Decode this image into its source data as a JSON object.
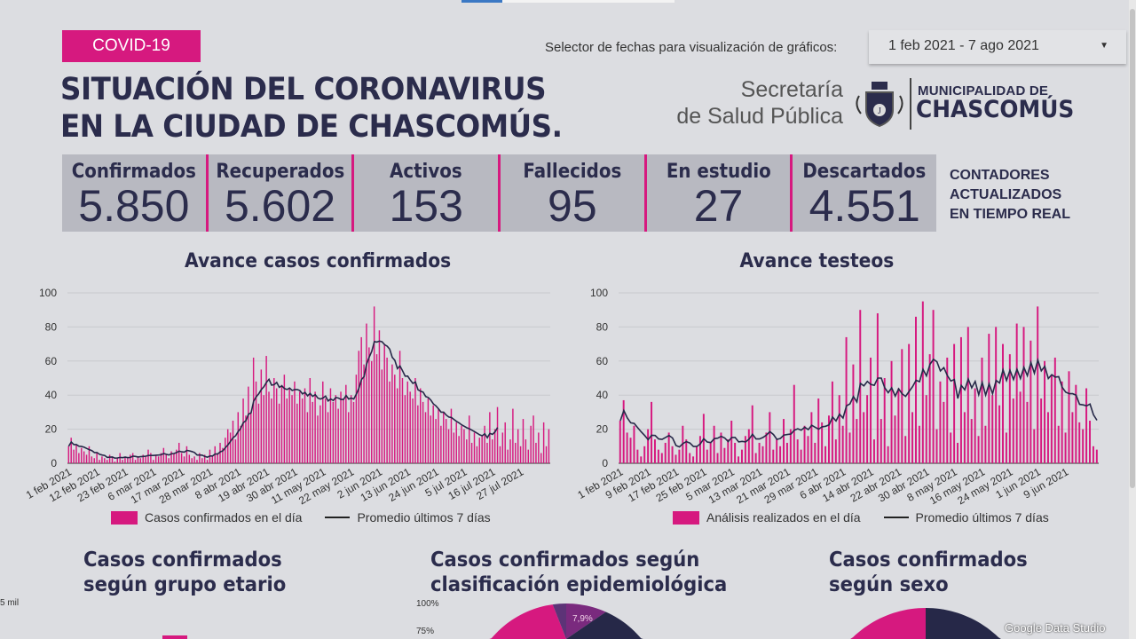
{
  "header": {
    "badge": "COVID-19",
    "title_line1": "SITUACIÓN DEL CORONAVIRUS",
    "title_line2": "EN LA CIUDAD DE CHASCOMÚS.",
    "date_selector_label": "Selector de fechas para visualización de gráficos:",
    "date_selector_value": "1 feb 2021 - 7 ago 2021",
    "secretaria_line1": "Secretaría",
    "secretaria_line2": "de Salud Pública",
    "muni_line1": "MUNICIPALIDAD DE",
    "muni_line2": "CHASCOMÚS"
  },
  "stats": [
    {
      "label": "Confirmados",
      "value": "5.850"
    },
    {
      "label": "Recuperados",
      "value": "5.602"
    },
    {
      "label": "Activos",
      "value": "153"
    },
    {
      "label": "Fallecidos",
      "value": "95"
    },
    {
      "label": "En estudio",
      "value": "27"
    },
    {
      "label": "Descartados",
      "value": "4.551"
    }
  ],
  "contadores": [
    "CONTADORES",
    "ACTUALIZADOS",
    "EN TIEMPO REAL"
  ],
  "colors": {
    "pink": "#d6197f",
    "navy": "#2b2c4c",
    "purple": "#7a2a7e"
  },
  "chart_data": [
    {
      "type": "bar",
      "title": "Avance casos confirmados",
      "ylim": [
        0,
        100
      ],
      "yticks": [
        0,
        20,
        40,
        60,
        80,
        100
      ],
      "grid": true,
      "legend": "bottom",
      "start_date": "1 feb 2021",
      "xtick_labels": [
        "1 feb 2021",
        "12 feb 2021",
        "23 feb 2021",
        "6 mar 2021",
        "17 mar 2021",
        "28 mar 2021",
        "8 abr 2021",
        "19 abr 2021",
        "30 abr 2021",
        "11 may 2021",
        "22 may 2021",
        "2 jun 2021",
        "13 jun 2021",
        "24 jun 2021",
        "5 jul 2021",
        "16 jul 2021",
        "27 jul 2021"
      ],
      "series": [
        {
          "name": "Casos confirmados en el día",
          "kind": "bar",
          "values": [
            10,
            15,
            8,
            11,
            6,
            9,
            7,
            5,
            10,
            4,
            3,
            6,
            2,
            4,
            3,
            2,
            5,
            4,
            1,
            3,
            6,
            2,
            4,
            3,
            5,
            6,
            2,
            4,
            3,
            5,
            4,
            8,
            6,
            2,
            5,
            4,
            6,
            9,
            5,
            3,
            7,
            6,
            8,
            12,
            6,
            4,
            10,
            5,
            3,
            4,
            2,
            6,
            3,
            5,
            2,
            8,
            4,
            10,
            6,
            12,
            9,
            15,
            20,
            18,
            25,
            14,
            30,
            22,
            38,
            28,
            45,
            30,
            62,
            48,
            35,
            55,
            40,
            63,
            42,
            38,
            50,
            44,
            35,
            46,
            52,
            38,
            44,
            40,
            48,
            35,
            42,
            38,
            44,
            30,
            50,
            36,
            42,
            28,
            34,
            48,
            38,
            30,
            44,
            36,
            40,
            32,
            42,
            38,
            46,
            30,
            40,
            36,
            52,
            66,
            74,
            58,
            82,
            68,
            60,
            92,
            64,
            78,
            55,
            70,
            62,
            48,
            58,
            52,
            44,
            66,
            50,
            40,
            48,
            42,
            38,
            50,
            34,
            44,
            36,
            30,
            38,
            28,
            34,
            26,
            32,
            22,
            30,
            26,
            20,
            32,
            18,
            24,
            16,
            22,
            20,
            14,
            28,
            12,
            18,
            10,
            15,
            16,
            22,
            12,
            30,
            14,
            20,
            33,
            10,
            18,
            24,
            8,
            14,
            32,
            12,
            20,
            10,
            26,
            14,
            8,
            22,
            28,
            12,
            18,
            6,
            24,
            10,
            20
          ]
        },
        {
          "name": "Promedio últimos 7 días",
          "kind": "line",
          "days_shown": 168
        }
      ]
    },
    {
      "type": "bar",
      "title": "Avance testeos",
      "ylim": [
        0,
        100
      ],
      "yticks": [
        0,
        20,
        40,
        60,
        80,
        100
      ],
      "grid": true,
      "legend": "bottom",
      "start_date": "1 feb 2021",
      "xtick_labels": [
        "1 feb 2021",
        "9 feb 2021",
        "17 feb 2021",
        "25 feb 2021",
        "5 mar 2021",
        "13 mar 2021",
        "21 mar 2021",
        "29 mar 2021",
        "6 abr 2021",
        "14 abr 2021",
        "22 abr 2021",
        "30 abr 2021",
        "8 may 2021",
        "16 may 2021",
        "24 may 2021",
        "1 jun 2021",
        "9 jun 2021"
      ],
      "series": [
        {
          "name": "Análisis realizados en el día",
          "kind": "bar",
          "values": [
            25,
            37,
            18,
            15,
            22,
            8,
            4,
            10,
            20,
            36,
            14,
            8,
            6,
            12,
            18,
            10,
            5,
            8,
            22,
            14,
            6,
            4,
            10,
            16,
            29,
            8,
            12,
            22,
            6,
            18,
            9,
            14,
            25,
            12,
            4,
            8,
            16,
            20,
            34,
            6,
            12,
            10,
            18,
            30,
            8,
            14,
            10,
            26,
            12,
            20,
            46,
            14,
            8,
            22,
            16,
            30,
            12,
            38,
            24,
            10,
            28,
            48,
            14,
            40,
            22,
            74,
            18,
            58,
            26,
            90,
            30,
            40,
            62,
            14,
            88,
            26,
            50,
            10,
            60,
            28,
            44,
            67,
            16,
            70,
            30,
            86,
            22,
            95,
            40,
            64,
            90,
            20,
            48,
            36,
            62,
            18,
            70,
            12,
            74,
            30,
            80,
            26,
            44,
            16,
            62,
            22,
            76,
            40,
            80,
            34,
            70,
            18,
            64,
            38,
            82,
            42,
            80,
            36,
            72,
            20,
            92,
            38,
            60,
            30,
            52,
            62,
            22,
            48,
            18,
            54,
            30,
            46,
            24,
            20,
            44,
            25,
            10,
            8
          ]
        },
        {
          "name": "Promedio últimos 7 días",
          "kind": "line",
          "days_shown": 138
        }
      ]
    }
  ],
  "bottom": {
    "age_title_1": "Casos confirmados",
    "age_title_2": "según grupo etario",
    "age_axis_top": "5 mil",
    "epi_title_1": "Casos confirmados según",
    "epi_title_2": "clasificación epidemiológica",
    "epi_axis": [
      "100%",
      "75%"
    ],
    "epi_slice_label": "7,9%",
    "sex_title_1": "Casos confirmados",
    "sex_title_2": "según sexo"
  },
  "footer": {
    "brand": "Google Data Studio"
  }
}
